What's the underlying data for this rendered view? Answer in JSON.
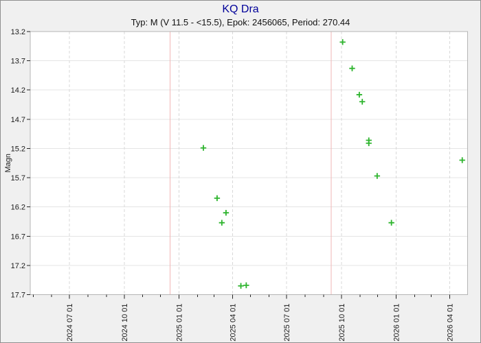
{
  "chart_data": {
    "type": "scatter",
    "title": "KQ Dra",
    "subtitle": "Typ: M (V 11.5 - <15.5), Epok: 2456065, Period: 270.44",
    "ylabel": "Magn",
    "y_range": [
      13.2,
      17.7
    ],
    "y_axis_direction": "magnitude-increases-downward",
    "y_ticks": [
      "13.2",
      "13.7",
      "14.2",
      "14.7",
      "15.2",
      "15.7",
      "16.2",
      "16.7",
      "17.2",
      "17.7"
    ],
    "x_range": [
      "2024-04-26",
      "2026-05-01"
    ],
    "x_minor_tick_interval_months": 1,
    "x_major_ticks": [
      {
        "date": "2024-07-01",
        "label": "2024 07 01"
      },
      {
        "date": "2024-10-01",
        "label": "2024 10 01"
      },
      {
        "date": "2025-01-01",
        "label": "2025 01 01"
      },
      {
        "date": "2025-04-01",
        "label": "2025 04 01"
      },
      {
        "date": "2025-07-01",
        "label": "2025 07 01"
      },
      {
        "date": "2025-10-01",
        "label": "2025 10 01"
      },
      {
        "date": "2026-01-01",
        "label": "2026 01 01"
      },
      {
        "date": "2026-04-01",
        "label": "2026 04 01"
      }
    ],
    "grid": {
      "horizontal": "solid",
      "vertical": "dashed",
      "legend": "none"
    },
    "marker": {
      "shape": "plus",
      "size": 9
    },
    "period_marker_lines": [
      {
        "date": "2024-12-17"
      },
      {
        "date": "2025-09-14"
      }
    ],
    "points": [
      {
        "date": "2025-02-11",
        "mag": 15.19
      },
      {
        "date": "2025-03-06",
        "mag": 16.05
      },
      {
        "date": "2025-03-14",
        "mag": 16.47
      },
      {
        "date": "2025-03-21",
        "mag": 16.3
      },
      {
        "date": "2025-04-15",
        "mag": 17.55
      },
      {
        "date": "2025-04-24",
        "mag": 17.54
      },
      {
        "date": "2025-10-03",
        "mag": 13.38
      },
      {
        "date": "2025-10-19",
        "mag": 13.83
      },
      {
        "date": "2025-10-31",
        "mag": 14.28
      },
      {
        "date": "2025-11-05",
        "mag": 14.4
      },
      {
        "date": "2025-11-16",
        "mag": 15.06
      },
      {
        "date": "2025-11-16",
        "mag": 15.11
      },
      {
        "date": "2025-11-30",
        "mag": 15.67
      },
      {
        "date": "2025-12-24",
        "mag": 16.47
      },
      {
        "date": "2026-04-22",
        "mag": 15.4
      }
    ]
  },
  "colors": {
    "title": "#000099",
    "background": "#f0f0f0",
    "plot_background": "#ffffff",
    "plot_border": "#b4b4b4",
    "h_gridline": "#e4e4e4",
    "v_gridline": "#d8d8d8",
    "period_line": "#f2b6b6",
    "marker": "#2db42d",
    "tick_mark": "#222222",
    "tick_text": "#1a1a1a"
  }
}
